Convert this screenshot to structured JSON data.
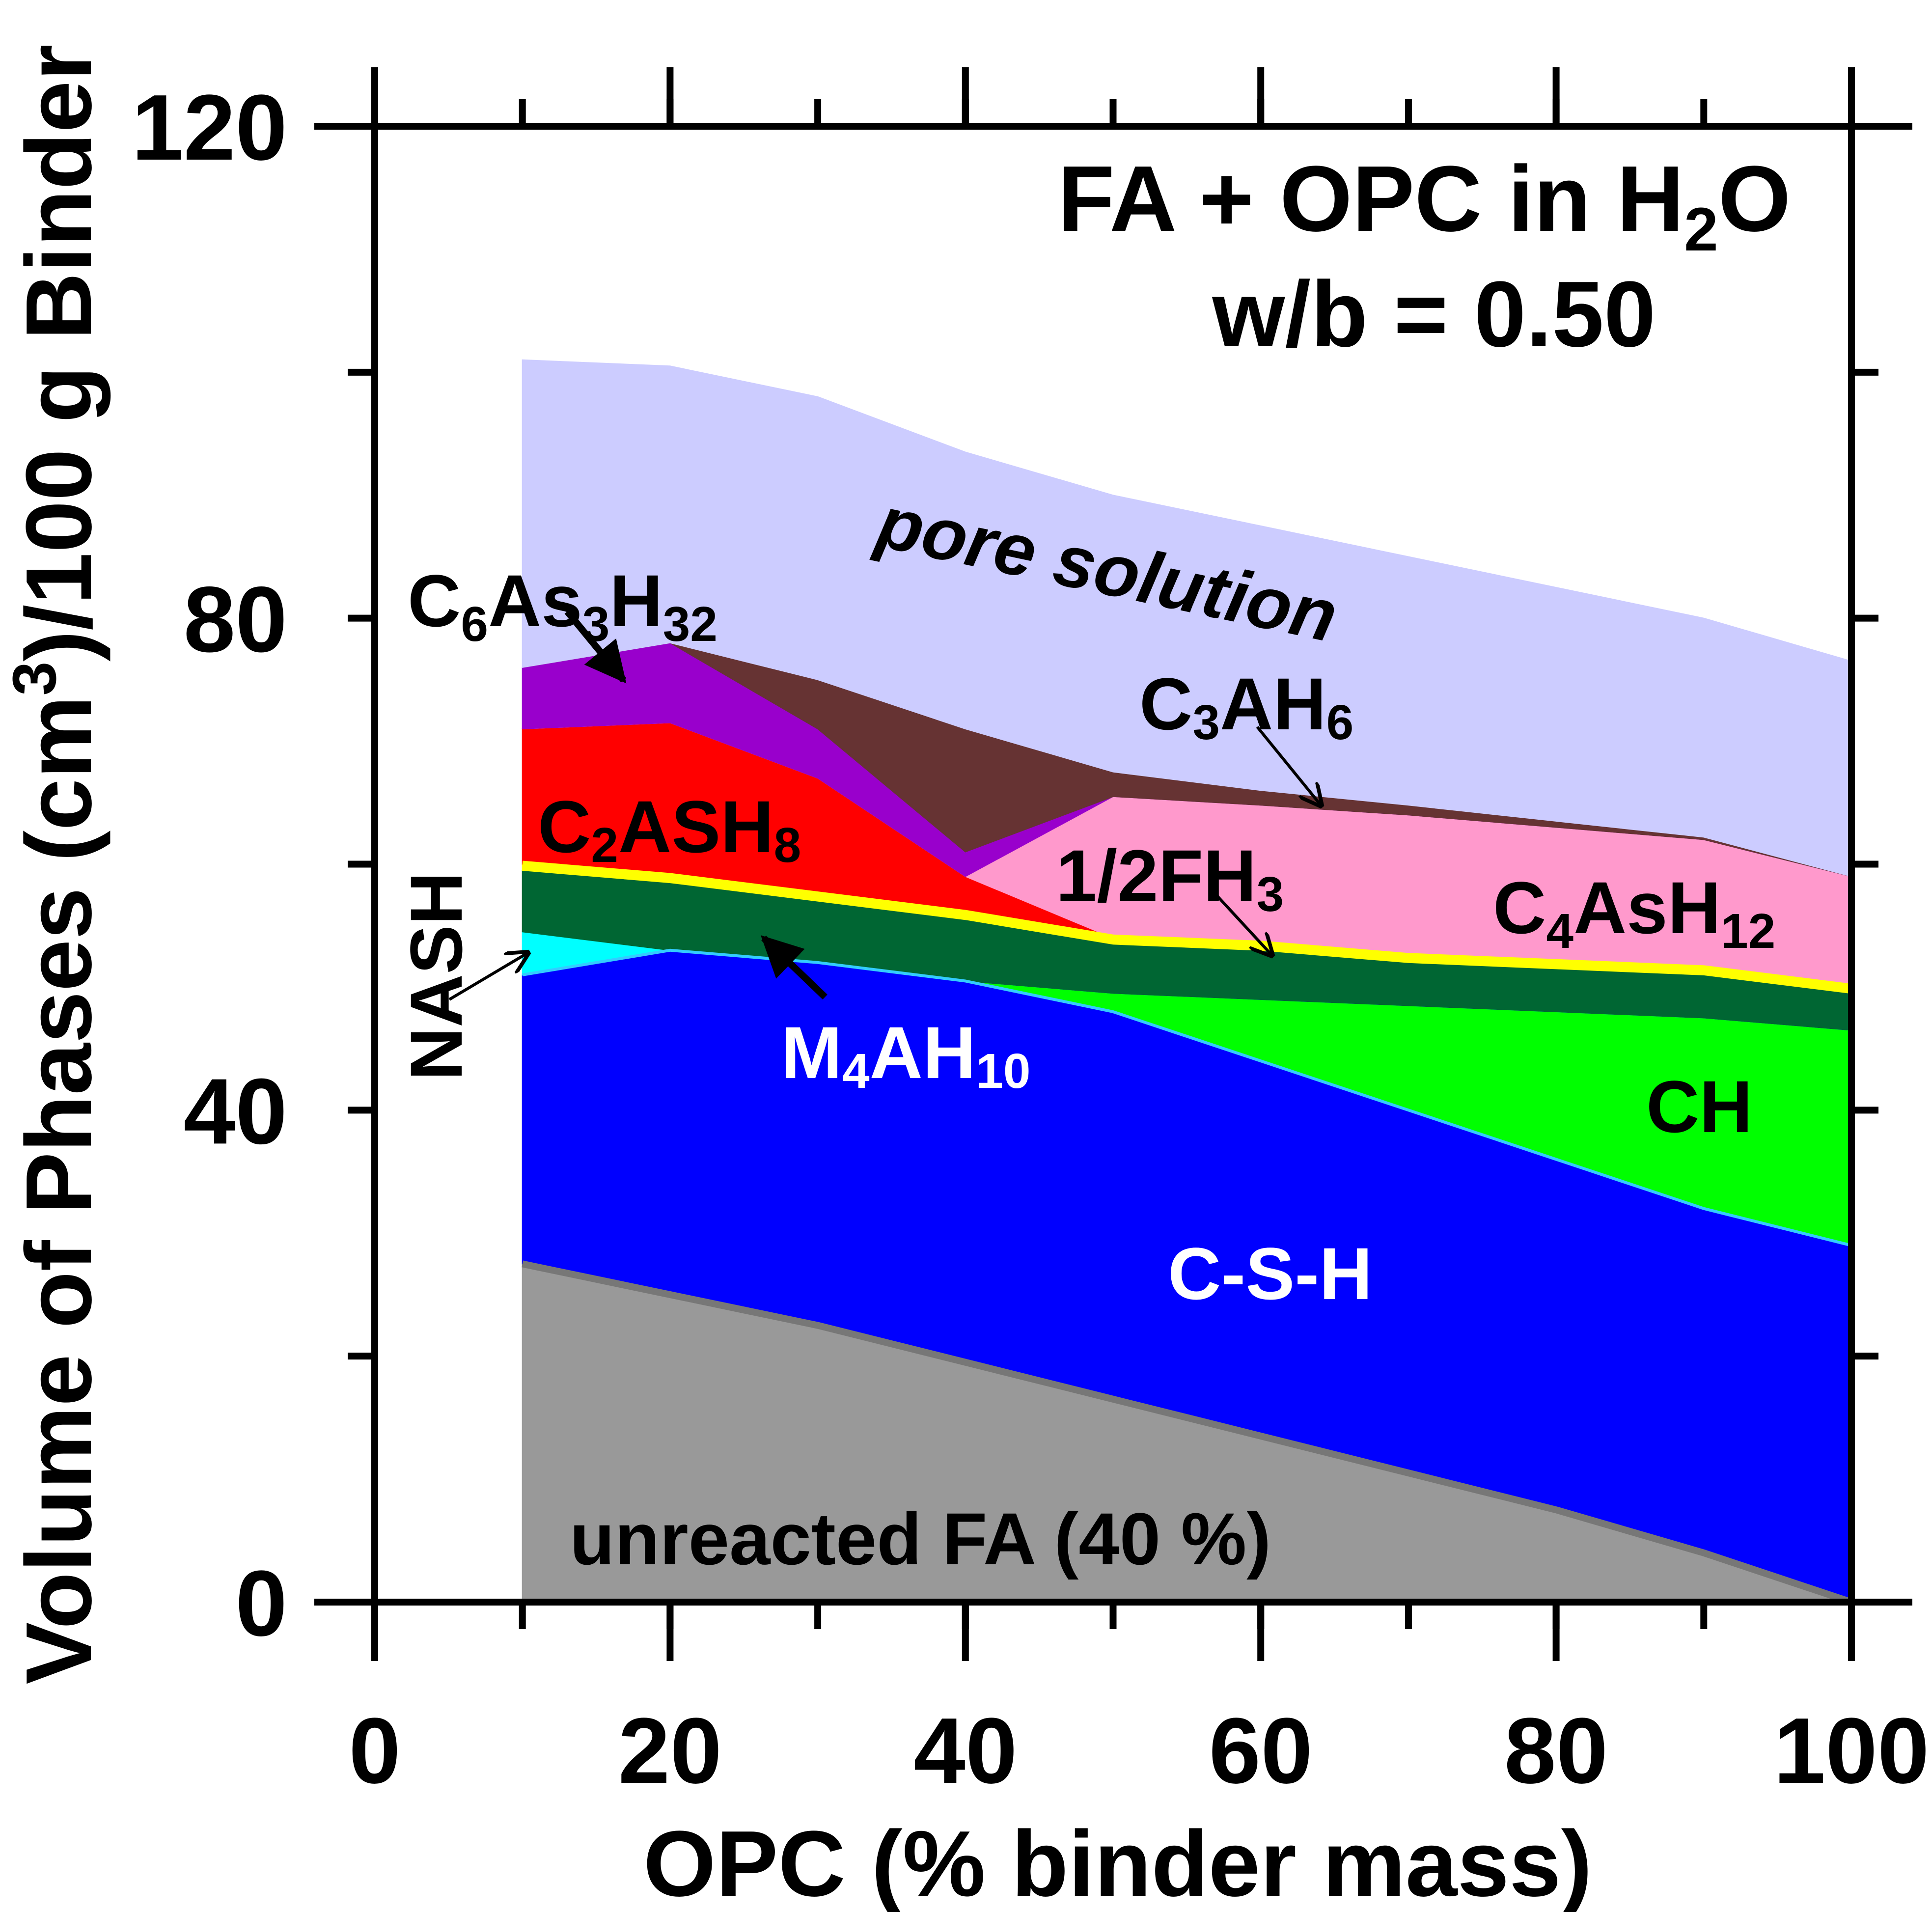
{
  "chart_data": {
    "type": "area",
    "title_line1": "FA + OPC in H",
    "title_sub": "2",
    "title_end": "O",
    "title_line2": "w/b = 0.50",
    "xlabel": "OPC (% binder mass)",
    "ylabel_pre": "Volume of Phases (cm",
    "ylabel_sup": "3",
    "ylabel_post": ")/100 g Binder",
    "xlim": [
      0,
      100
    ],
    "ylim": [
      0,
      120
    ],
    "x_ticks": [
      0,
      20,
      40,
      60,
      80,
      100
    ],
    "x_tick_labels": [
      "0",
      "20",
      "40",
      "60",
      "80",
      "100"
    ],
    "y_ticks": [
      0,
      40,
      80,
      120
    ],
    "y_tick_labels": [
      "0",
      "40",
      "80",
      "120"
    ],
    "x": [
      10,
      20,
      30,
      40,
      50,
      60,
      70,
      80,
      90,
      100
    ],
    "series": [
      {
        "name": "unreacted FA (40 %)",
        "color": "#999999",
        "upper": [
          27.5,
          25,
          22.5,
          19.5,
          16.5,
          13.5,
          10.5,
          7.5,
          4,
          0
        ]
      },
      {
        "name": "C-S-H",
        "color": "#0000ff",
        "upper": [
          51,
          53,
          52,
          50.5,
          48,
          44,
          40,
          36,
          32,
          29
        ]
      },
      {
        "name": "CH",
        "color": "#00ff00",
        "upper": [
          51,
          53,
          52,
          50.5,
          49.5,
          49,
          48.5,
          48,
          47.5,
          46.5
        ]
      },
      {
        "name": "NASH",
        "color": "#00ffff",
        "upper": [
          54.5,
          53,
          52,
          50.5,
          49.5,
          49,
          48.5,
          48,
          47.5,
          46.5
        ]
      },
      {
        "name": "M4AH10",
        "color": "#006633",
        "upper": [
          59.5,
          58.5,
          57,
          55.5,
          53.5,
          53,
          52,
          51.5,
          51,
          49.5
        ]
      },
      {
        "name": "1/2FH3",
        "color": "#ffff00",
        "upper": [
          60,
          59,
          57.5,
          56,
          54,
          53.5,
          52.5,
          52,
          51.5,
          50
        ]
      },
      {
        "name": "C2ASH8",
        "color": "#ff0000",
        "upper": [
          71,
          71.5,
          67,
          59,
          54,
          53.5,
          52.5,
          52,
          51.5,
          50
        ]
      },
      {
        "name": "C4AsH12",
        "color": "#ff99cc",
        "upper": [
          71,
          71.5,
          67,
          59,
          65.5,
          64.8,
          64,
          63,
          62,
          59
        ]
      },
      {
        "name": "C6As3H32",
        "color": "#9900cc",
        "upper": [
          76,
          78,
          71,
          61,
          65.5,
          64.8,
          64,
          63,
          62,
          59
        ]
      },
      {
        "name": "C3AH6",
        "color": "#663333",
        "upper": [
          76,
          78,
          75,
          71,
          67.5,
          66,
          64.8,
          63.5,
          62.2,
          59
        ]
      },
      {
        "name": "pore solution",
        "color": "#ccccff",
        "upper": [
          101,
          100.5,
          98,
          93.5,
          90,
          87.5,
          85,
          82.5,
          80,
          76.5
        ]
      }
    ],
    "annotations": [
      {
        "name": "unreacted-fa",
        "text": "unreacted FA (40 %)",
        "color": "#000000"
      },
      {
        "name": "csh",
        "text": "C-S-H",
        "color": "#ffffff"
      },
      {
        "name": "ch",
        "text": "CH",
        "color": "#000000"
      },
      {
        "name": "pore-solution",
        "text": "pore solution",
        "color": "#000000"
      },
      {
        "name": "nash",
        "text": "NASH",
        "color": "#000000"
      },
      {
        "name": "m4ah10",
        "text": "M4AH10",
        "color": "#ffffff"
      },
      {
        "name": "c2ash8",
        "text": "C2ASH8",
        "color": "#000000"
      },
      {
        "name": "half-fh3",
        "text": "1/2FH3",
        "color": "#000000"
      },
      {
        "name": "c4ash12",
        "text": "C4AsH12",
        "color": "#000000"
      },
      {
        "name": "c3ah6",
        "text": "C3AH6",
        "color": "#000000"
      },
      {
        "name": "c6as3h32",
        "text": "C6As3H32",
        "color": "#000000"
      }
    ]
  }
}
